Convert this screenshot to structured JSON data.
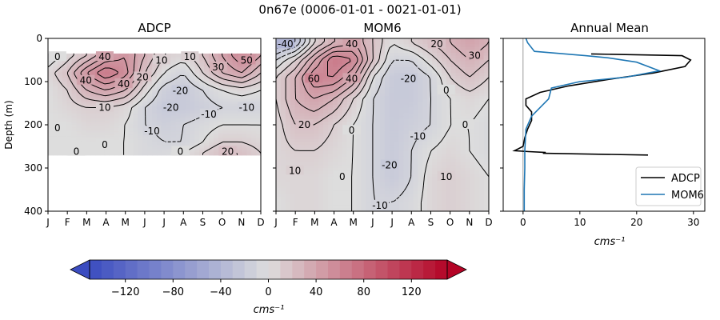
{
  "figure_title": "0n67e (0006-01-01 - 0021-01-01)",
  "chart_data": [
    {
      "type": "heatmap",
      "title": "ADCP",
      "ylabel": "Depth (m)",
      "xlabel": "",
      "x_tick_labels": [
        "J",
        "F",
        "M",
        "A",
        "M",
        "J",
        "J",
        "A",
        "S",
        "O",
        "N",
        "D"
      ],
      "y_ticks": [
        0,
        100,
        200,
        300,
        400
      ],
      "ylim": [
        400,
        0
      ],
      "data_depth_range": [
        35,
        270
      ],
      "contour_labels": [
        "-20",
        "40",
        "0",
        "50",
        "10",
        "40",
        "20",
        "40",
        "0",
        "30",
        "10",
        "0",
        "-10",
        "-10",
        "-20",
        "0",
        "-10",
        "0",
        "20",
        "10"
      ],
      "approx_values": {
        "rows_depth_m": [
          40,
          80,
          120,
          160,
          200,
          240,
          265
        ],
        "months": [
          "J",
          "F",
          "M",
          "A",
          "M",
          "J",
          "J",
          "A",
          "S",
          "O",
          "N",
          "D"
        ],
        "cms": [
          [
            -10,
            5,
            20,
            40,
            50,
            30,
            10,
            5,
            20,
            40,
            60,
            40
          ],
          [
            5,
            20,
            50,
            70,
            55,
            20,
            0,
            -10,
            10,
            30,
            40,
            20
          ],
          [
            0,
            10,
            30,
            40,
            30,
            5,
            -15,
            -20,
            -10,
            0,
            5,
            0
          ],
          [
            0,
            5,
            10,
            10,
            5,
            -10,
            -20,
            -20,
            -15,
            -10,
            -10,
            -10
          ],
          [
            0,
            0,
            5,
            5,
            0,
            -10,
            -15,
            -10,
            -5,
            0,
            0,
            0
          ],
          [
            0,
            0,
            0,
            0,
            0,
            -5,
            -10,
            -10,
            0,
            10,
            10,
            5
          ],
          [
            0,
            0,
            0,
            0,
            0,
            -5,
            -5,
            0,
            10,
            20,
            20,
            10
          ]
        ]
      }
    },
    {
      "type": "heatmap",
      "title": "MOM6",
      "xlabel": "",
      "x_tick_labels": [
        "J",
        "F",
        "M",
        "A",
        "M",
        "J",
        "J",
        "A",
        "S",
        "O",
        "N",
        "D"
      ],
      "ylim": [
        400,
        0
      ],
      "contour_labels": [
        "-40",
        "20",
        "40",
        "60",
        "30",
        "-10",
        "-20",
        "-10",
        "20",
        "10",
        "40",
        "0",
        "0",
        "0",
        "10",
        "-20",
        "0"
      ],
      "approx_values": {
        "rows_depth_m": [
          10,
          50,
          90,
          140,
          200,
          260,
          320,
          380
        ],
        "months": [
          "J",
          "F",
          "M",
          "A",
          "M",
          "J",
          "J",
          "A",
          "S",
          "O",
          "N",
          "D"
        ],
        "cms": [
          [
            -40,
            -30,
            10,
            30,
            40,
            20,
            0,
            10,
            20,
            30,
            40,
            30
          ],
          [
            -10,
            10,
            40,
            70,
            60,
            20,
            -10,
            -10,
            5,
            20,
            30,
            20
          ],
          [
            10,
            30,
            60,
            60,
            40,
            0,
            -20,
            -20,
            -10,
            10,
            20,
            10
          ],
          [
            10,
            30,
            40,
            30,
            10,
            -10,
            -20,
            -20,
            -10,
            0,
            5,
            0
          ],
          [
            5,
            20,
            20,
            10,
            0,
            -10,
            -20,
            -15,
            -10,
            0,
            0,
            -5
          ],
          [
            5,
            10,
            10,
            5,
            0,
            -10,
            -20,
            -10,
            0,
            5,
            0,
            -5
          ],
          [
            5,
            5,
            5,
            0,
            0,
            -10,
            -20,
            -10,
            5,
            10,
            5,
            0
          ],
          [
            0,
            5,
            5,
            0,
            0,
            -10,
            -10,
            -5,
            5,
            10,
            5,
            0
          ]
        ]
      }
    },
    {
      "type": "line",
      "title": "Annual Mean",
      "xlabel": "cms⁻¹",
      "x_ticks": [
        0,
        10,
        20,
        30
      ],
      "xlim": [
        -3.5,
        32
      ],
      "ylim": [
        400,
        0
      ],
      "legend_position": "lower-right",
      "series": [
        {
          "name": "ADCP",
          "color": "#000000",
          "points": [
            [
              12,
              36
            ],
            [
              28,
              40
            ],
            [
              29.5,
              50
            ],
            [
              28.5,
              65
            ],
            [
              23,
              80
            ],
            [
              15,
              95
            ],
            [
              8,
              110
            ],
            [
              3,
              125
            ],
            [
              0.5,
              140
            ],
            [
              0.5,
              155
            ],
            [
              1.5,
              170
            ],
            [
              1.5,
              190
            ],
            [
              0.8,
              210
            ],
            [
              0.3,
              230
            ],
            [
              0,
              250
            ],
            [
              -1.5,
              260
            ],
            [
              1,
              262
            ],
            [
              4,
              264
            ],
            [
              3.5,
              266
            ],
            [
              22,
              270
            ]
          ]
        },
        {
          "name": "MOM6",
          "color": "#1f77b4",
          "points": [
            [
              0.5,
              0
            ],
            [
              0.8,
              10
            ],
            [
              2,
              30
            ],
            [
              11,
              40
            ],
            [
              15,
              45
            ],
            [
              20,
              55
            ],
            [
              24,
              75
            ],
            [
              18,
              90
            ],
            [
              10,
              100
            ],
            [
              5,
              115
            ],
            [
              4.5,
              140
            ],
            [
              3,
              160
            ],
            [
              1.5,
              180
            ],
            [
              0.5,
              210
            ],
            [
              0.3,
              260
            ],
            [
              0.3,
              300
            ],
            [
              0.2,
              350
            ],
            [
              0.2,
              400
            ]
          ]
        }
      ]
    }
  ],
  "colorbar": {
    "ticks": [
      "−120",
      "−80",
      "−40",
      "0",
      "40",
      "80",
      "120"
    ],
    "label": "cms⁻¹",
    "range": [
      -150,
      150
    ],
    "step": 10
  },
  "colors": {
    "blue": "#3b4cc0",
    "neutral": "#dddddd",
    "red": "#b40426"
  }
}
